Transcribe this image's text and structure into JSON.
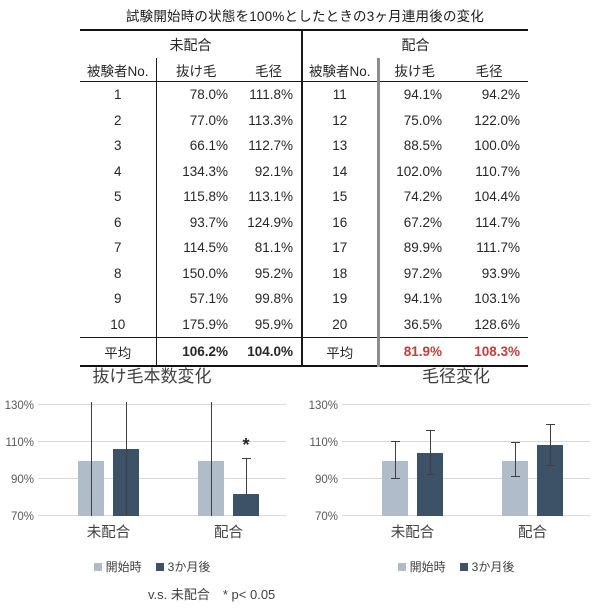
{
  "page_title": "試験開始時の状態を100%としたときの3ヶ月連用後の変化",
  "footnote": "v.s. 未配合　* p< 0.05",
  "colors": {
    "bar_start": "#b1bcca",
    "bar_after": "#3e5267",
    "grid": "#d9d9d9",
    "average_red": "#c43c35",
    "divider_gray": "#8c8c8c",
    "error_bar": "#3f3f3f"
  },
  "chart_data": [
    {
      "type": "table",
      "group_headers": [
        "未配合",
        "配合"
      ],
      "column_headers": [
        "被験者No.",
        "抜け毛",
        "毛径",
        "被験者No.",
        "抜け毛",
        "毛径"
      ],
      "rows": [
        [
          "1",
          "78.0%",
          "111.8%",
          "11",
          "94.1%",
          "94.2%"
        ],
        [
          "2",
          "77.0%",
          "113.3%",
          "12",
          "75.0%",
          "122.0%"
        ],
        [
          "3",
          "66.1%",
          "112.7%",
          "13",
          "88.5%",
          "100.0%"
        ],
        [
          "4",
          "134.3%",
          "92.1%",
          "14",
          "102.0%",
          "110.7%"
        ],
        [
          "5",
          "115.8%",
          "113.1%",
          "15",
          "74.2%",
          "104.4%"
        ],
        [
          "6",
          "93.7%",
          "124.9%",
          "16",
          "67.2%",
          "114.7%"
        ],
        [
          "7",
          "114.5%",
          "81.1%",
          "17",
          "89.9%",
          "111.7%"
        ],
        [
          "8",
          "150.0%",
          "95.2%",
          "18",
          "97.2%",
          "93.9%"
        ],
        [
          "9",
          "57.1%",
          "99.8%",
          "19",
          "94.1%",
          "103.1%"
        ],
        [
          "10",
          "175.9%",
          "95.9%",
          "20",
          "36.5%",
          "128.6%"
        ]
      ],
      "average_row": [
        "平均",
        "106.2%",
        "104.0%",
        "平均",
        "81.9%",
        "108.3%"
      ]
    },
    {
      "type": "bar",
      "title": "抜け毛本数変化",
      "categories": [
        "未配合",
        "配合"
      ],
      "series": [
        {
          "name": "開始時",
          "values": [
            100,
            100
          ]
        },
        {
          "name": "3か月後",
          "values": [
            106.2,
            81.9
          ]
        }
      ],
      "yticks": [
        70,
        90,
        110,
        130
      ],
      "ytick_labels": [
        "70%",
        "90%",
        "110%",
        "130%"
      ],
      "ylim": [
        70,
        131.6
      ],
      "grid": true,
      "legend_position": "bottom",
      "error_bars": [
        {
          "series": 0,
          "cat": 0,
          "low": 70,
          "high": 140,
          "cap_top": false,
          "cap_bottom": false
        },
        {
          "series": 1,
          "cat": 0,
          "low": 70,
          "high": 143,
          "cap_top": false,
          "cap_bottom": false
        },
        {
          "series": 0,
          "cat": 1,
          "low": 70,
          "high": 140,
          "cap_top": false,
          "cap_bottom": false
        },
        {
          "series": 1,
          "cat": 1,
          "low": 82,
          "high": 100.8,
          "cap_top": true,
          "cap_bottom": false
        }
      ],
      "annotation": {
        "text": "*",
        "series": 1,
        "cat": 1,
        "y": 100.8
      }
    },
    {
      "type": "bar",
      "title": "毛径変化",
      "categories": [
        "未配合",
        "配合"
      ],
      "series": [
        {
          "name": "開始時",
          "values": [
            100,
            100
          ]
        },
        {
          "name": "3か月後",
          "values": [
            104.0,
            108.3
          ]
        }
      ],
      "yticks": [
        70,
        90,
        110,
        130
      ],
      "ytick_labels": [
        "70%",
        "90%",
        "110%",
        "130%"
      ],
      "ylim": [
        70,
        131.6
      ],
      "grid": true,
      "legend_position": "bottom",
      "error_bars": [
        {
          "series": 0,
          "cat": 0,
          "low": 90,
          "high": 110,
          "cap_top": true,
          "cap_bottom": true
        },
        {
          "series": 1,
          "cat": 0,
          "low": 92,
          "high": 116,
          "cap_top": true,
          "cap_bottom": true
        },
        {
          "series": 0,
          "cat": 1,
          "low": 91,
          "high": 109.5,
          "cap_top": true,
          "cap_bottom": true
        },
        {
          "series": 1,
          "cat": 1,
          "low": 97,
          "high": 119,
          "cap_top": true,
          "cap_bottom": true
        }
      ]
    }
  ]
}
